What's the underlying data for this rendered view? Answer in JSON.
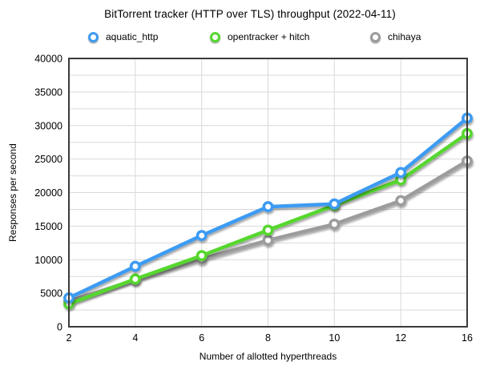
{
  "title": "BitTorrent tracker (HTTP over TLS) throughput (2022-04-11)",
  "chart_data": {
    "type": "line",
    "title": "BitTorrent tracker (HTTP over TLS) throughput (2022-04-11)",
    "xlabel": "Number of allotted hyperthreads",
    "ylabel": "Responses per second",
    "x_categories": [
      "2",
      "4",
      "6",
      "8",
      "10",
      "12",
      "16"
    ],
    "ylim": [
      0,
      40000
    ],
    "y_label_step": 5000,
    "y_grid_step": 2500,
    "grid": true,
    "legend_position": "top",
    "series": [
      {
        "name": "aquatic_http",
        "color": "#3d9bf2",
        "values": [
          4300,
          9000,
          13600,
          17900,
          18300,
          23000,
          31100
        ]
      },
      {
        "name": "opentracker + hitch",
        "color": "#56d72e",
        "values": [
          3400,
          7100,
          10600,
          14400,
          18100,
          21900,
          28800
        ]
      },
      {
        "name": "chihaya",
        "color": "#9c9c9c",
        "values": [
          3800,
          7000,
          10100,
          12900,
          15300,
          18800,
          24700
        ]
      }
    ],
    "colors": {
      "gridline": "#d9d9d9",
      "plot_border": "#3b3b3b",
      "text": "#000000",
      "marker_fill": "#ffffff"
    }
  }
}
